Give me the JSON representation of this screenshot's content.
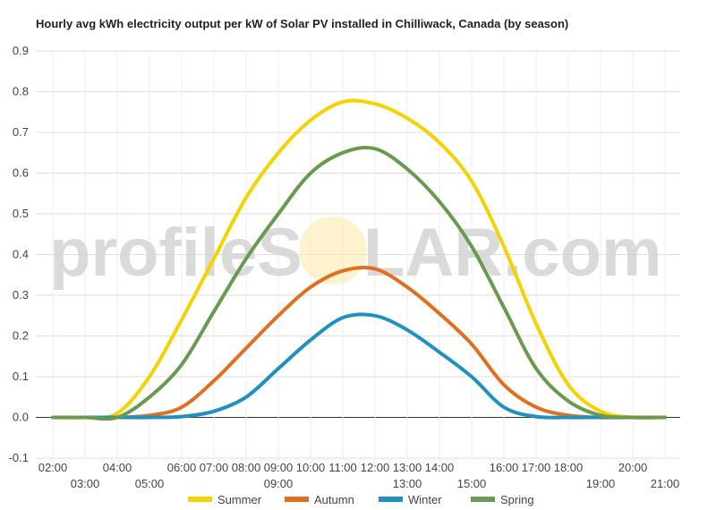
{
  "title": "Hourly avg kWh electricity output per kW of Solar PV installed in Chilliwack, Canada (by season)",
  "watermark": {
    "left": "profileS",
    "right": "LAR.com"
  },
  "chart_data": {
    "type": "line",
    "title": "Hourly avg kWh electricity output per kW of Solar PV installed in Chilliwack, Canada (by season)",
    "xlabel": "",
    "ylabel": "",
    "x": [
      "02:00",
      "03:00",
      "04:00",
      "05:00",
      "06:00",
      "07:00",
      "08:00",
      "09:00",
      "10:00",
      "11:00",
      "12:00",
      "13:00",
      "14:00",
      "15:00",
      "16:00",
      "17:00",
      "18:00",
      "19:00",
      "20:00",
      "21:00"
    ],
    "x_ticks_upper": [
      "02:00",
      "04:00",
      "06:00",
      "07:00",
      "08:00",
      "09:00",
      "10:00",
      "11:00",
      "12:00",
      "13:00",
      "14:00",
      "16:00",
      "17:00",
      "18:00",
      "20:00"
    ],
    "x_ticks_lower": [
      "03:00",
      "05:00",
      "09:00",
      "13:00",
      "15:00",
      "19:00",
      "21:00"
    ],
    "ylim": [
      -0.1,
      0.9
    ],
    "y_ticks": [
      "-0.1",
      "0.0",
      "0.1",
      "0.2",
      "0.3",
      "0.4",
      "0.5",
      "0.6",
      "0.7",
      "0.8",
      "0.9"
    ],
    "grid": true,
    "legend_position": "bottom",
    "series": [
      {
        "name": "Summer",
        "color": "#f5d200",
        "values": [
          0,
          0,
          0.01,
          0.1,
          0.24,
          0.39,
          0.54,
          0.65,
          0.73,
          0.775,
          0.77,
          0.735,
          0.675,
          0.58,
          0.42,
          0.23,
          0.08,
          0.015,
          0,
          0
        ]
      },
      {
        "name": "Autumn",
        "color": "#e07020",
        "values": [
          0,
          0,
          0,
          0.005,
          0.025,
          0.09,
          0.17,
          0.25,
          0.32,
          0.36,
          0.365,
          0.32,
          0.255,
          0.18,
          0.08,
          0.025,
          0.005,
          0,
          0,
          0
        ]
      },
      {
        "name": "Winter",
        "color": "#2090c0",
        "values": [
          0,
          0,
          0,
          0,
          0.002,
          0.015,
          0.05,
          0.12,
          0.19,
          0.245,
          0.25,
          0.215,
          0.16,
          0.1,
          0.025,
          0.002,
          0,
          0,
          0,
          0
        ]
      },
      {
        "name": "Spring",
        "color": "#6a9a50",
        "values": [
          0,
          0,
          0,
          0.05,
          0.13,
          0.26,
          0.39,
          0.5,
          0.6,
          0.65,
          0.66,
          0.61,
          0.53,
          0.42,
          0.27,
          0.12,
          0.04,
          0.005,
          0,
          0
        ]
      }
    ]
  }
}
